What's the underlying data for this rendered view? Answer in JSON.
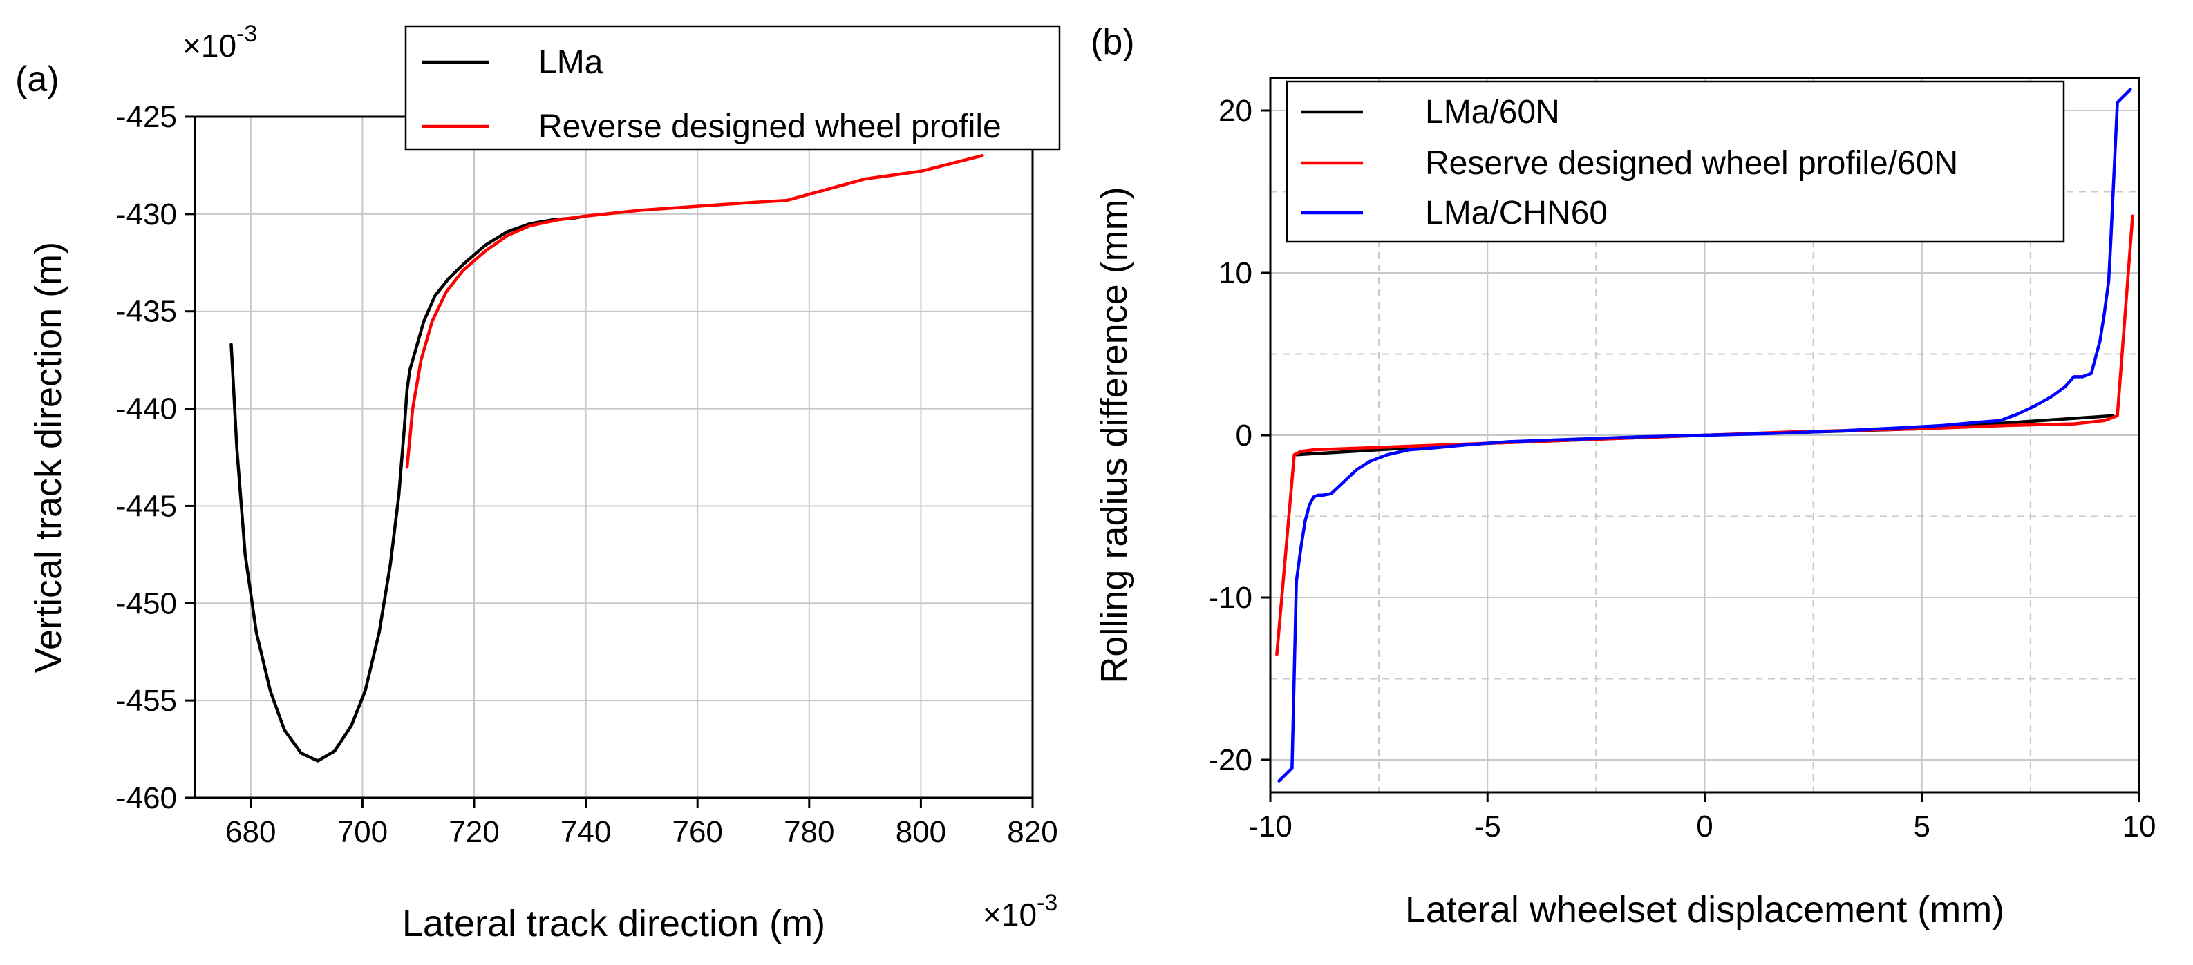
{
  "chart_data": [
    {
      "panel_label": "(a)",
      "type": "line",
      "xlabel": "Lateral track direction (m)",
      "ylabel": "Vertical track direction (m)",
      "x_scale_label": "×10",
      "x_scale_exp": "-3",
      "y_scale_label": "×10",
      "y_scale_exp": "-3",
      "xlim": [
        670,
        820
      ],
      "ylim": [
        -460,
        -425
      ],
      "xticks": [
        680,
        700,
        720,
        740,
        760,
        780,
        800,
        820
      ],
      "yticks": [
        -460,
        -455,
        -450,
        -445,
        -440,
        -435,
        -430,
        -425
      ],
      "grid": true,
      "legend_position": "top-right",
      "series": [
        {
          "name": "LMa",
          "color": "#000000",
          "x": [
            676.5,
            677.5,
            679,
            681,
            683.5,
            686,
            689,
            692,
            695,
            698,
            700.5,
            703,
            705,
            706.5,
            707.5,
            708,
            708.5,
            709.5,
            711,
            713,
            715.5,
            718,
            722,
            726,
            730,
            734,
            738,
            740
          ],
          "y": [
            -436.7,
            -442,
            -447.5,
            -451.5,
            -454.5,
            -456.5,
            -457.7,
            -458.1,
            -457.6,
            -456.3,
            -454.5,
            -451.5,
            -448,
            -444.5,
            -441,
            -439,
            -438,
            -437,
            -435.5,
            -434.2,
            -433.3,
            -432.6,
            -431.6,
            -430.9,
            -430.5,
            -430.3,
            -430.2,
            -430.1
          ]
        },
        {
          "name": "Reverse designed wheel profile",
          "color": "#ff0000",
          "x": [
            708,
            709,
            710.5,
            712.5,
            715,
            718,
            722,
            726,
            730,
            735,
            740,
            750,
            760,
            770,
            776,
            790,
            800,
            811
          ],
          "y": [
            -443,
            -440,
            -437.5,
            -435.5,
            -434,
            -432.9,
            -431.9,
            -431.1,
            -430.6,
            -430.3,
            -430.1,
            -429.8,
            -429.6,
            -429.4,
            -429.3,
            -428.2,
            -427.8,
            -427
          ]
        }
      ]
    },
    {
      "panel_label": "(b)",
      "type": "line",
      "xlabel": "Lateral wheelset displacement (mm)",
      "ylabel": "Rolling radius difference (mm)",
      "xlim": [
        -10,
        10
      ],
      "ylim": [
        -22,
        22
      ],
      "xticks": [
        -10,
        -5,
        0,
        5,
        10
      ],
      "yticks": [
        -20,
        -10,
        0,
        10,
        20
      ],
      "grid": true,
      "legend_position": "top-left",
      "series": [
        {
          "name": "LMa/60N",
          "color": "#000000",
          "x": [
            -9.4,
            -5,
            0,
            5,
            9.4
          ],
          "y": [
            -1.2,
            -0.5,
            0,
            0.4,
            1.2
          ]
        },
        {
          "name": "Reserve designed wheel profile/60N",
          "color": "#ff0000",
          "x": [
            -9.85,
            -9.45,
            -9.3,
            -9.0,
            -7,
            -5,
            -2,
            0,
            2,
            5,
            7,
            8.5,
            9.2,
            9.5,
            9.85
          ],
          "y": [
            -13.5,
            -1.2,
            -1,
            -0.9,
            -0.7,
            -0.5,
            -0.2,
            0,
            0.2,
            0.4,
            0.6,
            0.7,
            0.9,
            1.2,
            13.5
          ]
        },
        {
          "name": "LMa/CHN60",
          "color": "#0000ff",
          "x": [
            -9.8,
            -9.5,
            -9.4,
            -9.3,
            -9.2,
            -9.1,
            -9.0,
            -8.9,
            -8.8,
            -8.6,
            -8.4,
            -8.2,
            -8.0,
            -7.7,
            -7.3,
            -6.8,
            -6.3,
            -5.5,
            -4.5,
            -3.0,
            -1.5,
            0,
            1.5,
            3.0,
            4.5,
            5.5,
            6.3,
            6.8,
            7.2,
            7.6,
            8.0,
            8.3,
            8.5,
            8.7,
            8.9,
            9.0,
            9.1,
            9.2,
            9.3,
            9.35,
            9.5,
            9.8
          ],
          "y": [
            -21.3,
            -20.5,
            -9,
            -7,
            -5.3,
            -4.3,
            -3.8,
            -3.7,
            -3.7,
            -3.6,
            -3.1,
            -2.6,
            -2.1,
            -1.6,
            -1.2,
            -0.9,
            -0.8,
            -0.6,
            -0.4,
            -0.25,
            -0.1,
            0,
            0.1,
            0.25,
            0.45,
            0.6,
            0.8,
            0.9,
            1.3,
            1.8,
            2.4,
            3.0,
            3.6,
            3.6,
            3.8,
            4.8,
            5.8,
            7.5,
            9.5,
            12,
            20.5,
            21.3
          ]
        }
      ]
    }
  ]
}
